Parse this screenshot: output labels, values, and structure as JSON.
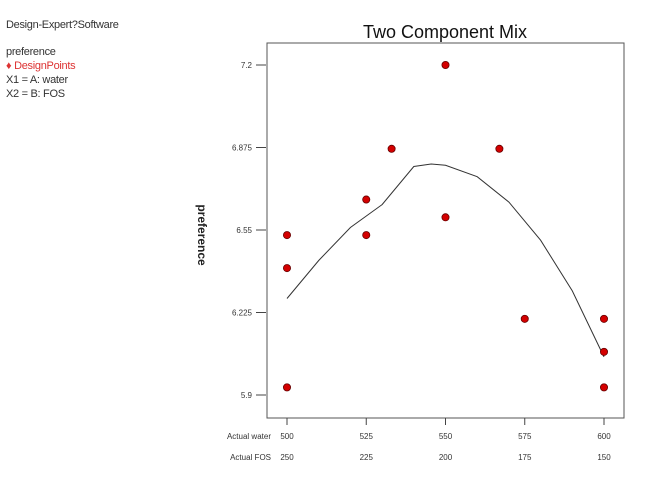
{
  "legend": {
    "software": "Design-Expert?Software",
    "response": "preference",
    "design_points_icon": "diamond-icon",
    "design_points": "DesignPoints",
    "x1": "X1 = A: water",
    "x2": "X2 = B: FOS"
  },
  "chart_data": {
    "type": "scatter",
    "title": "Two Component Mix",
    "ylabel": "preference",
    "x_row_labels": [
      "Actual water",
      "Actual FOS"
    ],
    "x_ticks": [
      500,
      525,
      550,
      575,
      600
    ],
    "x2_ticks": [
      250,
      225,
      200,
      175,
      150
    ],
    "xlim": [
      500,
      600
    ],
    "y_ticks": [
      "7.2",
      "6.875",
      "6.55",
      "6.225",
      "5.9"
    ],
    "ylim": [
      5.9,
      7.2
    ],
    "grid": false,
    "point_color": "#d40000",
    "points": [
      {
        "x": 500,
        "y": 6.53
      },
      {
        "x": 500,
        "y": 6.4
      },
      {
        "x": 500,
        "y": 5.93
      },
      {
        "x": 525,
        "y": 6.67
      },
      {
        "x": 525,
        "y": 6.53
      },
      {
        "x": 533,
        "y": 6.87
      },
      {
        "x": 550,
        "y": 7.2
      },
      {
        "x": 550,
        "y": 6.6
      },
      {
        "x": 567,
        "y": 6.87
      },
      {
        "x": 575,
        "y": 6.2
      },
      {
        "x": 600,
        "y": 6.2
      },
      {
        "x": 600,
        "y": 6.07
      },
      {
        "x": 600,
        "y": 5.93
      }
    ],
    "fit_curve": {
      "x": [
        500,
        510,
        520,
        530,
        540,
        545.5,
        550,
        560,
        570,
        580,
        590,
        600
      ],
      "y": [
        6.28,
        6.43,
        6.56,
        6.65,
        6.8,
        6.81,
        6.805,
        6.76,
        6.66,
        6.51,
        6.31,
        6.05
      ]
    }
  }
}
